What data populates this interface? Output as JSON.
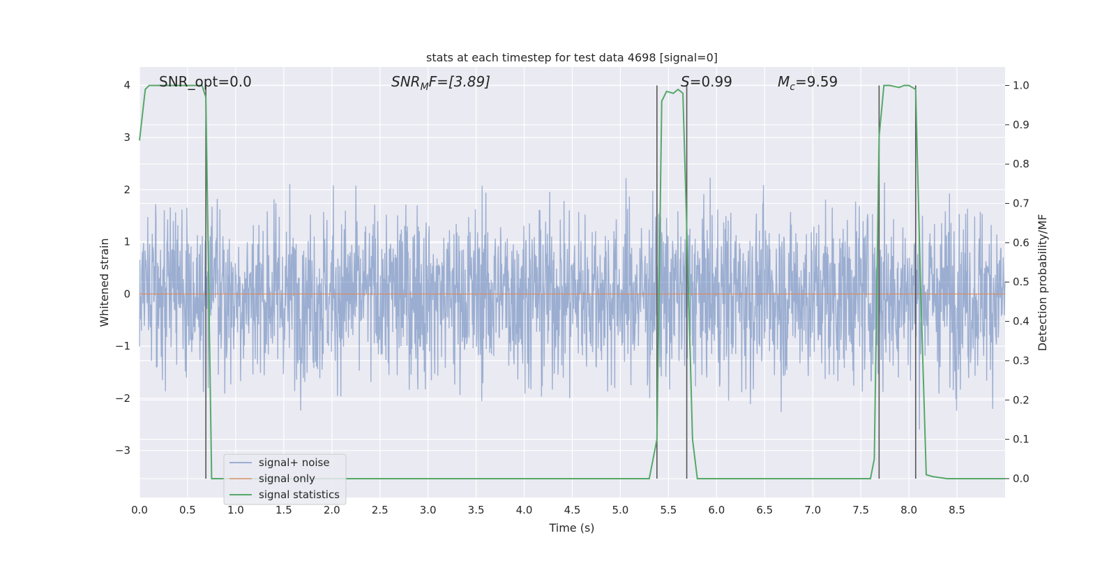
{
  "chart_data": {
    "type": "line",
    "title": "stats at each timestep for test data 4698 [signal=0]",
    "xlabel": "Time (s)",
    "ylabel_left": "Whitened strain",
    "ylabel_right": "Detection probability/MF",
    "xlim": [
      0,
      9
    ],
    "ylim_left": [
      -3.9,
      4.35
    ],
    "ylim_right": [
      -0.048,
      1.047
    ],
    "x_ticks": [
      0.0,
      0.5,
      1.0,
      1.5,
      2.0,
      2.5,
      3.0,
      3.5,
      4.0,
      4.5,
      5.0,
      5.5,
      6.0,
      6.5,
      7.0,
      7.5,
      8.0,
      8.5
    ],
    "x_tick_labels": [
      "0.0",
      "0.5",
      "1.0",
      "1.5",
      "2.0",
      "2.5",
      "3.0",
      "3.5",
      "4.0",
      "4.5",
      "5.0",
      "5.5",
      "6.0",
      "6.5",
      "7.0",
      "7.5",
      "8.0",
      "8.5"
    ],
    "y_left_ticks": [
      4,
      3,
      2,
      1,
      0,
      -1,
      -2,
      -3
    ],
    "y_left_tick_labels": [
      "4",
      "3",
      "2",
      "1",
      "0",
      "−1",
      "−2",
      "−3"
    ],
    "y_right_ticks": [
      1.0,
      0.9,
      0.8,
      0.7,
      0.6,
      0.5,
      0.4,
      0.3,
      0.2,
      0.1,
      0.0
    ],
    "y_right_tick_labels": [
      "1.0",
      "0.9",
      "0.8",
      "0.7",
      "0.6",
      "0.5",
      "0.4",
      "0.3",
      "0.2",
      "0.1",
      "0.0"
    ],
    "grid": true,
    "legend_placement": "lower-left",
    "annotations": {
      "snr_opt": "SNR_opt=0.0",
      "snr_mf_main": "SNR",
      "snr_mf_sub": "M",
      "snr_mf_rest": "F=[3.89]",
      "s_var": "S",
      "s_val": "=0.99",
      "mc_var": "M",
      "mc_sub": "c",
      "mc_val": "=9.59"
    },
    "series": [
      {
        "name": "signal+ noise",
        "color": "#4c72b0",
        "axis": "left",
        "note_amplitude": "whitened noise, approx. within [-3.6, 3.7]",
        "samples_per_second": 256
      },
      {
        "name": "signal only",
        "color": "#dd8452",
        "axis": "left",
        "x": [
          0,
          9
        ],
        "y": [
          0,
          0
        ]
      },
      {
        "name": "signal statistics",
        "color": "#55a868",
        "axis": "right",
        "x": [
          0.0,
          0.06,
          0.1,
          0.2,
          0.3,
          0.4,
          0.5,
          0.6,
          0.65,
          0.69,
          0.75,
          0.8,
          1.0,
          2.0,
          3.0,
          4.0,
          5.0,
          5.3,
          5.38,
          5.43,
          5.48,
          5.55,
          5.6,
          5.65,
          5.7,
          5.75,
          5.8,
          5.85,
          6.0,
          7.0,
          7.6,
          7.64,
          7.69,
          7.74,
          7.8,
          7.9,
          7.95,
          8.0,
          8.07,
          8.12,
          8.18,
          8.25,
          8.4,
          8.6,
          9.0
        ],
        "y": [
          0.86,
          0.99,
          1.0,
          1.0,
          1.0,
          1.0,
          1.0,
          1.0,
          1.0,
          0.97,
          0.0,
          0.0,
          0.0,
          0.0,
          0.0,
          0.0,
          0.0,
          0.0,
          0.1,
          0.96,
          0.985,
          0.98,
          0.99,
          0.98,
          0.55,
          0.1,
          0.0,
          0.0,
          0.0,
          0.0,
          0.0,
          0.05,
          0.87,
          1.0,
          1.0,
          0.995,
          1.0,
          1.0,
          0.99,
          0.5,
          0.01,
          0.005,
          0.0,
          0.0,
          0.0
        ]
      }
    ],
    "vertical_lines": {
      "color": "#555555",
      "x": [
        0.69,
        5.38,
        5.69,
        7.69,
        8.07
      ],
      "y_range_right": [
        0.0,
        1.0
      ]
    }
  }
}
